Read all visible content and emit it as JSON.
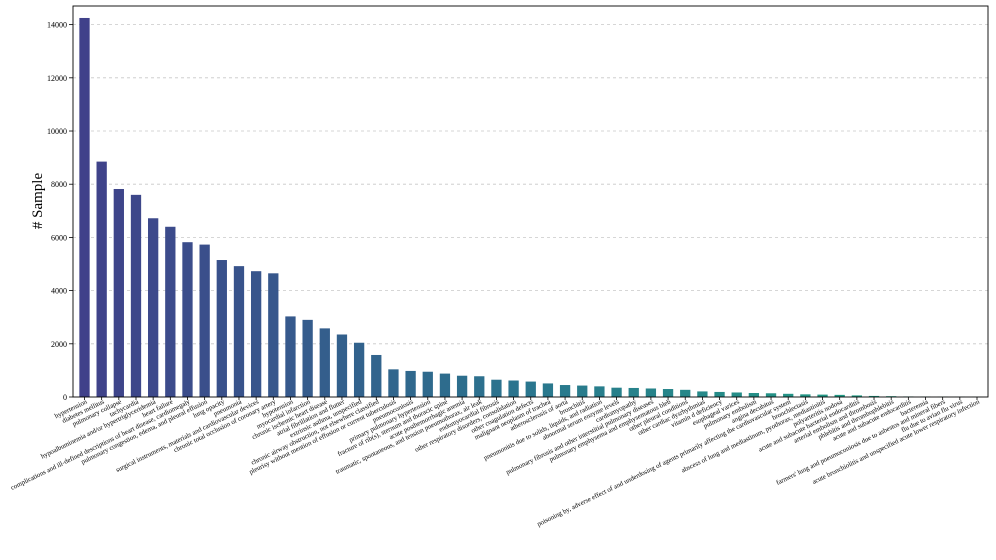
{
  "chart_data": {
    "type": "bar",
    "ylabel": "# Sample",
    "xlabel": "",
    "title": "",
    "ylim": [
      0,
      14700
    ],
    "yticks": [
      0,
      2000,
      4000,
      6000,
      8000,
      10000,
      12000,
      14000
    ],
    "grid": "y-dashed",
    "colormap": "viridis-blue-to-green",
    "categories": [
      "hypertension",
      "diabetes mellitus",
      "pulmonary collapse",
      "tachycardia",
      "hypoalbuminemia and/or hypertriglyceridemia",
      "heart failure",
      "complications and ill-defined descriptions of heart disease, cardiomegaly",
      "pulmonary congestion, edema, and pleural effusion",
      "lung opacity",
      "pneumonia",
      "surgical instruments, materials and cardiovascular devices",
      "chronic total occlusion of coronary artery",
      "hypotension",
      "myocardial infarction",
      "chronic ischemic heart disease",
      "atrial fibrillation and flutter",
      "extrinsic asthma, unspecified",
      "chronic airway obstruction, not elsewhere classified",
      "pleurisy without mention of effusion or current tuberculosis",
      "pneumoconiosis",
      "primary pulmonary hypertension",
      "fracture of rib(s), sternum and thoracic spine",
      "acute posthemorrhagic anemia",
      "traumatic, spontaneous, and tension pneumothorax, air leak",
      "endomyocardial fibrosis",
      "other respiratory disorders, consolidation",
      "other coagulation defects",
      "malignant neoplasm of trachea",
      "atherosclerosis of aorta",
      "bronchitis",
      "pneumonitis due to solids, liquids, and radiation",
      "abnormal serum enzyme levels",
      "cardiomyopathy",
      "pulmonary fibrosis and other interstitial pulmonary diseases",
      "pulmonary emphysema and emphysematous bleb",
      "other pleural conditions",
      "other cardiac dysrhythmias",
      "vitamin d deficiency",
      "esophageal varices",
      "pulmonary embolism",
      "angina decubitus",
      "poisoning by, adverse effect of and underdosing of agents primarily affecting the cardiovascular system",
      "bronchiectasis",
      "abscess of lung and mediastinum, pyothorax, mediastinitis",
      "polyarteritis nodosa",
      "acute and subacute bacterial endocarditis",
      "arterial embolism and thrombosis",
      "phlebitis and thrombophlebitis",
      "acute and subacute endocarditis",
      "bacteremia",
      "farmers' lung and pneumoconiosis due to asbestos and mineral fibers",
      "flu due to avian flu virus",
      "acute bronchiolitis and unspecified acute lower respiratory infection"
    ],
    "values": [
      14250,
      8850,
      7820,
      7600,
      6720,
      6400,
      5820,
      5730,
      5150,
      4920,
      4730,
      4650,
      3030,
      2900,
      2580,
      2350,
      2040,
      1580,
      1040,
      980,
      950,
      880,
      800,
      780,
      650,
      620,
      580,
      510,
      450,
      430,
      400,
      350,
      340,
      320,
      300,
      270,
      210,
      190,
      170,
      150,
      140,
      120,
      100,
      90,
      80,
      60,
      40,
      30,
      20,
      15,
      10,
      8,
      5
    ]
  }
}
